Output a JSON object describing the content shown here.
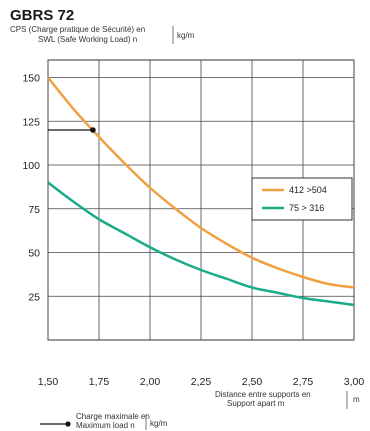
{
  "chart_data": {
    "type": "line",
    "title": "GBRS 72",
    "ylabel_line1": "CPS (Charge pratique de Sécurité) en",
    "ylabel_line2": "SWL (Safe Working Load) n",
    "ylabel_unit": "kg/m",
    "xlabel_line1": "Distance entre supports en",
    "xlabel_line2": "Support apart m",
    "xlabel_unit": "m",
    "footnote_line1": "Charge maximale en",
    "footnote_line2": "Maximum load n",
    "footnote_unit": "kg/m",
    "xlim": [
      1.5,
      3.0
    ],
    "ylim": [
      0,
      160
    ],
    "x_ticks": [
      "1,50",
      "1,75",
      "2,00",
      "2,25",
      "2,50",
      "2,75",
      "3,00"
    ],
    "x_tick_values": [
      1.5,
      1.75,
      2.0,
      2.25,
      2.5,
      2.75,
      3.0
    ],
    "y_ticks": [
      "150",
      "125",
      "100",
      "75",
      "50",
      "25"
    ],
    "y_tick_values": [
      150,
      125,
      100,
      75,
      50,
      25
    ],
    "grid": true,
    "legend_position": "right",
    "series": [
      {
        "name": "412 >504",
        "color": "#f0a040",
        "x": [
          1.5,
          1.625,
          1.75,
          1.875,
          2.0,
          2.125,
          2.25,
          2.375,
          2.5,
          2.625,
          2.75,
          2.875,
          3.0
        ],
        "y": [
          150,
          132,
          116,
          101,
          87,
          75,
          64,
          55,
          47,
          41,
          36,
          32,
          30
        ]
      },
      {
        "name": "75 > 316",
        "color": "#1aab8a",
        "x": [
          1.5,
          1.625,
          1.75,
          1.875,
          2.0,
          2.125,
          2.25,
          2.375,
          2.5,
          2.625,
          2.75,
          2.875,
          3.0
        ],
        "y": [
          90,
          79,
          69,
          61,
          53,
          46,
          40,
          35,
          30,
          27,
          24,
          22,
          20
        ]
      }
    ],
    "annotation": {
      "x": 1.72,
      "y": 120
    }
  }
}
